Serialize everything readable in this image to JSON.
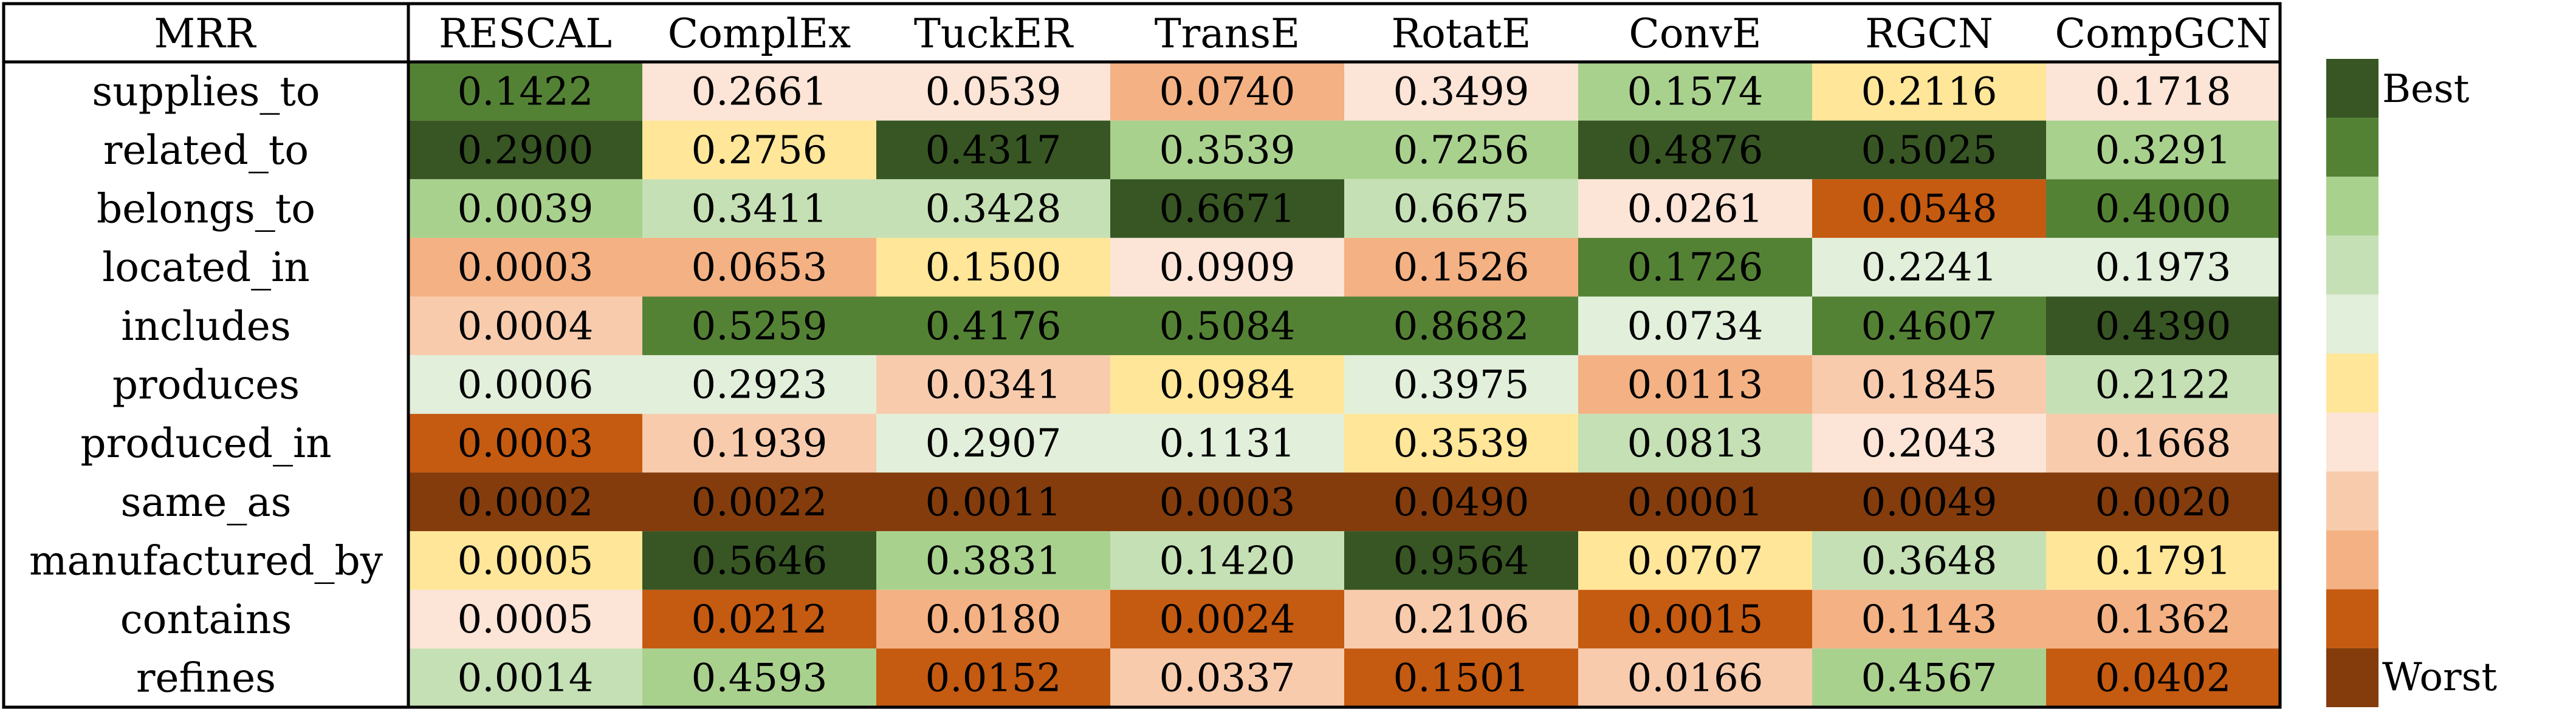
{
  "chart_data": {
    "type": "heatmap",
    "corner_label": "MRR",
    "columns": [
      "RESCAL",
      "ComplEx",
      "TuckER",
      "TransE",
      "RotatE",
      "ConvE",
      "RGCN",
      "CompGCN"
    ],
    "rows": [
      {
        "label": "supplies_to",
        "values": [
          "0.1422",
          "0.2661",
          "0.0539",
          "0.0740",
          "0.3499",
          "0.1574",
          "0.2116",
          "0.1718"
        ],
        "colors": [
          "#548235",
          "#FCE4D6",
          "#FCE4D6",
          "#F4B183",
          "#FCE4D6",
          "#A9D18E",
          "#FFE699",
          "#FCE4D6"
        ]
      },
      {
        "label": "related_to",
        "values": [
          "0.2900",
          "0.2756",
          "0.4317",
          "0.3539",
          "0.7256",
          "0.4876",
          "0.5025",
          "0.3291"
        ],
        "colors": [
          "#375623",
          "#FFE699",
          "#375623",
          "#A9D18E",
          "#A9D18E",
          "#375623",
          "#375623",
          "#A9D18E"
        ]
      },
      {
        "label": "belongs_to",
        "values": [
          "0.0039",
          "0.3411",
          "0.3428",
          "0.6671",
          "0.6675",
          "0.0261",
          "0.0548",
          "0.4000"
        ],
        "colors": [
          "#A9D18E",
          "#C5E0B4",
          "#C5E0B4",
          "#375623",
          "#C5E0B4",
          "#FCE4D6",
          "#C55A11",
          "#548235"
        ]
      },
      {
        "label": "located_in",
        "values": [
          "0.0003",
          "0.0653",
          "0.1500",
          "0.0909",
          "0.1526",
          "0.1726",
          "0.2241",
          "0.1973"
        ],
        "colors": [
          "#F4B183",
          "#F4B183",
          "#FFE699",
          "#FCE4D6",
          "#F4B183",
          "#548235",
          "#E2EFDA",
          "#E2EFDA"
        ]
      },
      {
        "label": "includes",
        "values": [
          "0.0004",
          "0.5259",
          "0.4176",
          "0.5084",
          "0.8682",
          "0.0734",
          "0.4607",
          "0.4390"
        ],
        "colors": [
          "#F8CBAD",
          "#548235",
          "#548235",
          "#548235",
          "#548235",
          "#E2EFDA",
          "#548235",
          "#375623"
        ]
      },
      {
        "label": "produces",
        "values": [
          "0.0006",
          "0.2923",
          "0.0341",
          "0.0984",
          "0.3975",
          "0.0113",
          "0.1845",
          "0.2122"
        ],
        "colors": [
          "#E2EFDA",
          "#E2EFDA",
          "#F8CBAD",
          "#FFE699",
          "#E2EFDA",
          "#F4B183",
          "#F8CBAD",
          "#C5E0B4"
        ]
      },
      {
        "label": "produced_in",
        "values": [
          "0.0003",
          "0.1939",
          "0.2907",
          "0.1131",
          "0.3539",
          "0.0813",
          "0.2043",
          "0.1668"
        ],
        "colors": [
          "#C55A11",
          "#F8CBAD",
          "#E2EFDA",
          "#E2EFDA",
          "#FFE699",
          "#C5E0B4",
          "#FCE4D6",
          "#F8CBAD"
        ]
      },
      {
        "label": "same_as",
        "values": [
          "0.0002",
          "0.0022",
          "0.0011",
          "0.0003",
          "0.0490",
          "0.0001",
          "0.0049",
          "0.0020"
        ],
        "colors": [
          "#843C0C",
          "#843C0C",
          "#843C0C",
          "#843C0C",
          "#843C0C",
          "#843C0C",
          "#843C0C",
          "#843C0C"
        ]
      },
      {
        "label": "manufactured_by",
        "values": [
          "0.0005",
          "0.5646",
          "0.3831",
          "0.1420",
          "0.9564",
          "0.0707",
          "0.3648",
          "0.1791"
        ],
        "colors": [
          "#FFE699",
          "#375623",
          "#A9D18E",
          "#C5E0B4",
          "#375623",
          "#FFE699",
          "#C5E0B4",
          "#FFE699"
        ]
      },
      {
        "label": "contains",
        "values": [
          "0.0005",
          "0.0212",
          "0.0180",
          "0.0024",
          "0.2106",
          "0.0015",
          "0.1143",
          "0.1362"
        ],
        "colors": [
          "#FCE4D6",
          "#C55A11",
          "#F4B183",
          "#C55A11",
          "#F8CBAD",
          "#C55A11",
          "#F4B183",
          "#F4B183"
        ]
      },
      {
        "label": "refines",
        "values": [
          "0.0014",
          "0.4593",
          "0.0152",
          "0.0337",
          "0.1501",
          "0.0166",
          "0.4567",
          "0.0402"
        ],
        "colors": [
          "#C5E0B4",
          "#A9D18E",
          "#C55A11",
          "#F8CBAD",
          "#C55A11",
          "#F8CBAD",
          "#A9D18E",
          "#C55A11"
        ]
      }
    ],
    "legend": {
      "placement": "right",
      "top_label": "Best",
      "bottom_label": "Worst",
      "scale_colors": [
        "#375623",
        "#548235",
        "#A9D18E",
        "#C5E0B4",
        "#E2EFDA",
        "#FFE699",
        "#FCE4D6",
        "#F8CBAD",
        "#F4B183",
        "#C55A11",
        "#843C0C"
      ]
    }
  }
}
